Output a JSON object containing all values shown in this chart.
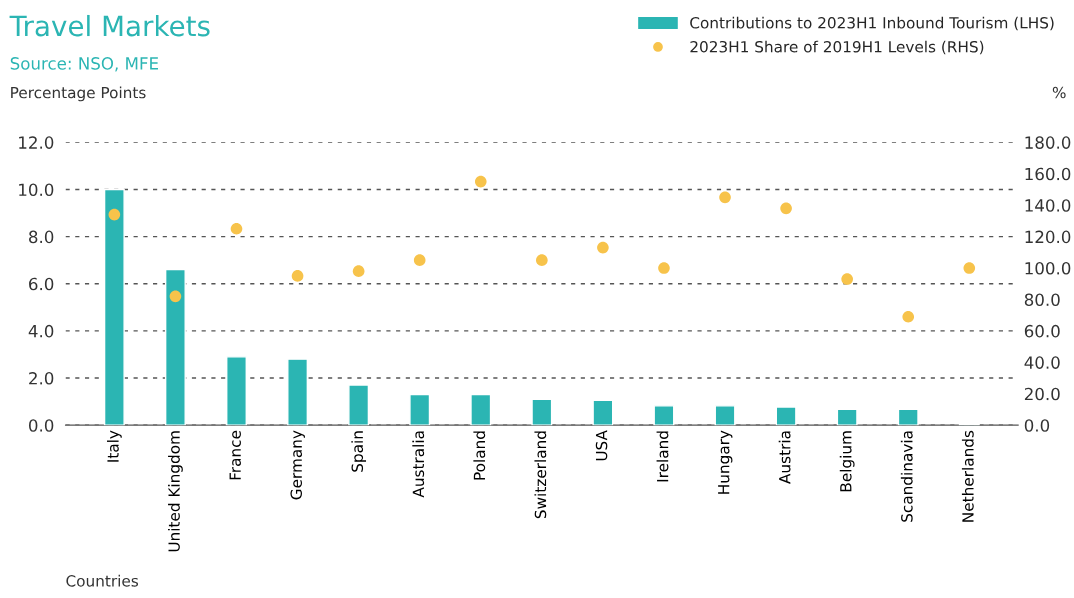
{
  "chart_data": {
    "type": "bar",
    "title": "Travel Markets",
    "annotations": [
      "Source: NSO, MFE"
    ],
    "xlabel": "Countries",
    "ylabel": "Percentage Points",
    "y2label": "%",
    "categories": [
      "Italy",
      "United Kingdom",
      "France",
      "Germany",
      "Spain",
      "Australia",
      "Poland",
      "Switzerland",
      "USA",
      "Ireland",
      "Hungary",
      "Austria",
      "Belgium",
      "Scandinavia",
      "Netherlands"
    ],
    "series": [
      {
        "name": "Contributions to 2023H1 Inbound Tourism (LHS)",
        "color": "#2bb5b3",
        "values": [
          10.0,
          6.6,
          2.9,
          2.8,
          1.7,
          1.3,
          1.3,
          1.1,
          1.05,
          0.82,
          0.82,
          0.77,
          0.67,
          0.67,
          0.06
        ]
      },
      {
        "name": "2023H1 Share of 2019H1 Levels (RHS)",
        "type": "scatter",
        "axis": "y2",
        "marker": "circle",
        "color": "#f7c34b",
        "values": [
          134,
          82,
          125,
          95,
          98,
          105,
          155,
          105,
          113,
          100,
          145,
          138,
          93,
          69,
          100
        ]
      }
    ],
    "ylim": [
      0,
      12
    ],
    "yticks": [
      {
        "value": 0,
        "label": "0.0"
      },
      {
        "value": 2,
        "label": "2.0"
      },
      {
        "value": 4,
        "label": "4.0"
      },
      {
        "value": 6,
        "label": "6.0"
      },
      {
        "value": 8,
        "label": "8.0"
      },
      {
        "value": 10,
        "label": "10.0"
      },
      {
        "value": 12,
        "label": "12.0"
      }
    ],
    "y2lim": [
      0,
      180
    ],
    "y2ticks": [
      {
        "value": 0,
        "label": "0.0"
      },
      {
        "value": 20,
        "label": "20.0"
      },
      {
        "value": 40,
        "label": "40.0"
      },
      {
        "value": 60,
        "label": "60.0"
      },
      {
        "value": 80,
        "label": "80.0"
      },
      {
        "value": 100,
        "label": "100.0"
      },
      {
        "value": 120,
        "label": "120.0"
      },
      {
        "value": 140,
        "label": "140.0"
      },
      {
        "value": 160,
        "label": "160.0"
      },
      {
        "value": 180,
        "label": "180.0"
      }
    ],
    "grid": "y",
    "legend": "top right"
  }
}
